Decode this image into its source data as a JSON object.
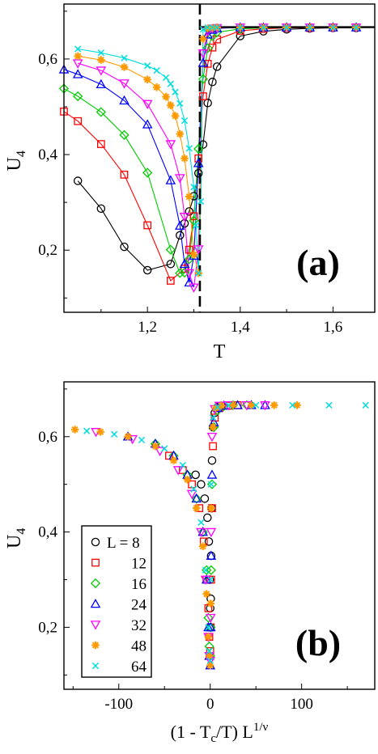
{
  "chart_data": [
    {
      "type": "line",
      "panel_label": "(a)",
      "xlabel": "T",
      "ylabel": "U",
      "ylabel_sub": "4",
      "xlim": [
        1.02,
        1.69
      ],
      "ylim": [
        0.07,
        0.715
      ],
      "xticks": [
        1.2,
        1.4,
        1.6
      ],
      "xtick_labels": [
        "1,2",
        "1,4",
        "1,6"
      ],
      "yticks": [
        0.2,
        0.4,
        0.6
      ],
      "ytick_labels": [
        "0,2",
        "0,4",
        "0,6"
      ],
      "critical_T": 1.313,
      "plateau_U": 0.6667,
      "series": [
        {
          "name": "L = 8",
          "marker": "circle",
          "color": "#000000",
          "x": [
            1.05,
            1.1,
            1.15,
            1.2,
            1.25,
            1.27,
            1.28,
            1.29,
            1.3,
            1.31,
            1.32,
            1.33,
            1.34,
            1.35,
            1.4,
            1.45,
            1.5,
            1.55,
            1.6,
            1.65
          ],
          "y": [
            0.345,
            0.287,
            0.207,
            0.158,
            0.171,
            0.231,
            0.256,
            0.281,
            0.313,
            0.361,
            0.421,
            0.508,
            0.552,
            0.584,
            0.648,
            0.658,
            0.662,
            0.664,
            0.665,
            0.665
          ]
        },
        {
          "name": "12",
          "marker": "square",
          "color": "#ff0000",
          "x": [
            1.02,
            1.05,
            1.1,
            1.15,
            1.2,
            1.25,
            1.28,
            1.29,
            1.3,
            1.31,
            1.32,
            1.33,
            1.34,
            1.35,
            1.4,
            1.45,
            1.5,
            1.55,
            1.6,
            1.65
          ],
          "y": [
            0.49,
            0.47,
            0.422,
            0.358,
            0.252,
            0.136,
            0.161,
            0.201,
            0.271,
            0.392,
            0.522,
            0.59,
            0.624,
            0.641,
            0.659,
            0.663,
            0.665,
            0.665,
            0.666,
            0.666
          ]
        },
        {
          "name": "16",
          "marker": "diamond",
          "color": "#00cc00",
          "x": [
            1.02,
            1.05,
            1.1,
            1.15,
            1.2,
            1.25,
            1.27,
            1.28,
            1.29,
            1.3,
            1.31,
            1.32,
            1.33,
            1.34,
            1.35,
            1.4,
            1.45,
            1.5,
            1.55,
            1.6,
            1.65
          ],
          "y": [
            0.538,
            0.522,
            0.489,
            0.441,
            0.362,
            0.201,
            0.152,
            0.153,
            0.181,
            0.262,
            0.412,
            0.558,
            0.623,
            0.648,
            0.656,
            0.663,
            0.665,
            0.666,
            0.666,
            0.666,
            0.666
          ]
        },
        {
          "name": "24",
          "marker": "triangle-up",
          "color": "#0000ff",
          "x": [
            1.02,
            1.05,
            1.1,
            1.15,
            1.2,
            1.25,
            1.27,
            1.28,
            1.29,
            1.3,
            1.31,
            1.32,
            1.33,
            1.34,
            1.35,
            1.4,
            1.45,
            1.5,
            1.55,
            1.6,
            1.65
          ],
          "y": [
            0.578,
            0.568,
            0.547,
            0.513,
            0.463,
            0.346,
            0.251,
            0.171,
            0.132,
            0.188,
            0.382,
            0.592,
            0.651,
            0.661,
            0.664,
            0.666,
            0.666,
            0.666,
            0.666,
            0.666,
            0.666
          ]
        },
        {
          "name": "32",
          "marker": "triangle-down",
          "color": "#ff00ff",
          "x": [
            1.05,
            1.1,
            1.15,
            1.2,
            1.25,
            1.27,
            1.28,
            1.29,
            1.3,
            1.31,
            1.32,
            1.33,
            1.34,
            1.35,
            1.4,
            1.45,
            1.5,
            1.55,
            1.6,
            1.65
          ],
          "y": [
            0.591,
            0.576,
            0.549,
            0.506,
            0.422,
            0.351,
            0.27,
            0.152,
            0.122,
            0.202,
            0.612,
            0.658,
            0.664,
            0.665,
            0.666,
            0.666,
            0.666,
            0.666,
            0.666,
            0.666
          ]
        },
        {
          "name": "48",
          "marker": "star",
          "color": "#ff9900",
          "x": [
            1.05,
            1.1,
            1.15,
            1.2,
            1.22,
            1.24,
            1.25,
            1.26,
            1.27,
            1.28,
            1.29,
            1.3,
            1.31,
            1.32,
            1.33,
            1.34,
            1.35,
            1.4,
            1.45,
            1.5,
            1.55,
            1.6,
            1.65
          ],
          "y": [
            0.606,
            0.598,
            0.583,
            0.557,
            0.541,
            0.521,
            0.503,
            0.481,
            0.443,
            0.392,
            0.312,
            0.191,
            0.152,
            0.642,
            0.664,
            0.665,
            0.666,
            0.666,
            0.666,
            0.666,
            0.666,
            0.666,
            0.666
          ]
        },
        {
          "name": "64",
          "marker": "cross",
          "color": "#00dddd",
          "x": [
            1.05,
            1.1,
            1.15,
            1.2,
            1.22,
            1.24,
            1.25,
            1.26,
            1.27,
            1.28,
            1.29,
            1.3,
            1.305,
            1.31,
            1.315,
            1.32,
            1.33,
            1.34,
            1.35,
            1.4,
            1.45,
            1.5,
            1.55,
            1.6,
            1.65
          ],
          "y": [
            0.621,
            0.613,
            0.602,
            0.586,
            0.576,
            0.561,
            0.548,
            0.531,
            0.507,
            0.471,
            0.413,
            0.332,
            0.252,
            0.152,
            0.302,
            0.662,
            0.666,
            0.666,
            0.666,
            0.666,
            0.666,
            0.666,
            0.666,
            0.666,
            0.666
          ]
        }
      ]
    },
    {
      "type": "scatter",
      "panel_label": "(b)",
      "xlabel": "(1 - T",
      "xlabel_sub": "c",
      "xlabel_mid": "/T)  L",
      "xlabel_sup": "1/ν",
      "ylabel": "U",
      "ylabel_sub": "4",
      "xlim": [
        -160,
        180
      ],
      "ylim": [
        0.07,
        0.715
      ],
      "xticks": [
        -100,
        0,
        100
      ],
      "xtick_labels": [
        "-100",
        "0",
        "100"
      ],
      "yticks": [
        0.2,
        0.4,
        0.6
      ],
      "ytick_labels": [
        "0,2",
        "0,4",
        "0,6"
      ],
      "legend": {
        "position": "bottom-left",
        "entries": [
          "L = 8",
          "12",
          "16",
          "24",
          "32",
          "48",
          "64"
        ]
      },
      "series": [
        {
          "name": "L = 8",
          "marker": "circle",
          "color": "#000000",
          "x": [
            -16,
            -10,
            -6,
            -3,
            -1.5,
            -0.5,
            0,
            0.3,
            0.6,
            1,
            1.5,
            2,
            3,
            5,
            8,
            12
          ],
          "y": [
            0.52,
            0.5,
            0.47,
            0.43,
            0.38,
            0.3,
            0.24,
            0.2,
            0.26,
            0.35,
            0.45,
            0.55,
            0.62,
            0.65,
            0.662,
            0.665
          ]
        },
        {
          "name": "12",
          "marker": "square",
          "color": "#ff0000",
          "x": [
            -45,
            -30,
            -20,
            -12,
            -7,
            -4,
            -2,
            -1,
            0,
            0.5,
            1,
            2,
            3,
            5,
            10,
            20,
            30
          ],
          "y": [
            0.56,
            0.53,
            0.5,
            0.45,
            0.38,
            0.3,
            0.24,
            0.18,
            0.15,
            0.2,
            0.3,
            0.45,
            0.58,
            0.64,
            0.66,
            0.665,
            0.666
          ]
        },
        {
          "name": "16",
          "marker": "diamond",
          "color": "#00cc00",
          "x": [
            -60,
            -40,
            -25,
            -15,
            -8,
            -4,
            -2,
            -1,
            0,
            0.5,
            1,
            2,
            4,
            8,
            15,
            25,
            40
          ],
          "y": [
            0.585,
            0.56,
            0.52,
            0.47,
            0.4,
            0.32,
            0.22,
            0.16,
            0.14,
            0.2,
            0.32,
            0.5,
            0.62,
            0.655,
            0.664,
            0.666,
            0.666
          ]
        },
        {
          "name": "24",
          "marker": "triangle-up",
          "color": "#0000ff",
          "x": [
            -90,
            -60,
            -40,
            -25,
            -15,
            -8,
            -4,
            -2,
            -1,
            0,
            0.5,
            1,
            2,
            4,
            8,
            15,
            30,
            45,
            60
          ],
          "y": [
            0.6,
            0.585,
            0.56,
            0.52,
            0.47,
            0.4,
            0.3,
            0.2,
            0.14,
            0.12,
            0.2,
            0.35,
            0.52,
            0.63,
            0.66,
            0.665,
            0.666,
            0.666,
            0.666
          ]
        },
        {
          "name": "32",
          "marker": "triangle-down",
          "color": "#ff00ff",
          "x": [
            -125,
            -85,
            -55,
            -35,
            -20,
            -10,
            -5,
            -2,
            -1,
            0,
            0.5,
            1,
            2,
            5,
            10,
            20,
            40,
            60
          ],
          "y": [
            0.61,
            0.595,
            0.57,
            0.53,
            0.48,
            0.4,
            0.3,
            0.18,
            0.14,
            0.13,
            0.22,
            0.4,
            0.6,
            0.658,
            0.665,
            0.666,
            0.666,
            0.666
          ]
        },
        {
          "name": "48",
          "marker": "star",
          "color": "#ff9900",
          "x": [
            -148,
            -120,
            -90,
            -60,
            -40,
            -25,
            -15,
            -8,
            -4,
            -2,
            -1,
            0,
            0.5,
            1,
            3,
            6,
            12,
            25,
            45,
            70,
            95
          ],
          "y": [
            0.615,
            0.61,
            0.6,
            0.58,
            0.55,
            0.51,
            0.45,
            0.37,
            0.27,
            0.18,
            0.14,
            0.12,
            0.25,
            0.45,
            0.62,
            0.66,
            0.665,
            0.666,
            0.666,
            0.666,
            0.666
          ]
        },
        {
          "name": "64",
          "marker": "cross",
          "color": "#00dddd",
          "x": [
            -135,
            -105,
            -75,
            -50,
            -30,
            -18,
            -10,
            -5,
            -2,
            -1,
            0,
            0.5,
            1,
            3,
            8,
            20,
            50,
            90,
            130,
            170
          ],
          "y": [
            0.612,
            0.605,
            0.593,
            0.575,
            0.54,
            0.49,
            0.42,
            0.32,
            0.2,
            0.15,
            0.13,
            0.3,
            0.5,
            0.64,
            0.662,
            0.666,
            0.666,
            0.666,
            0.666,
            0.666
          ]
        }
      ]
    }
  ]
}
